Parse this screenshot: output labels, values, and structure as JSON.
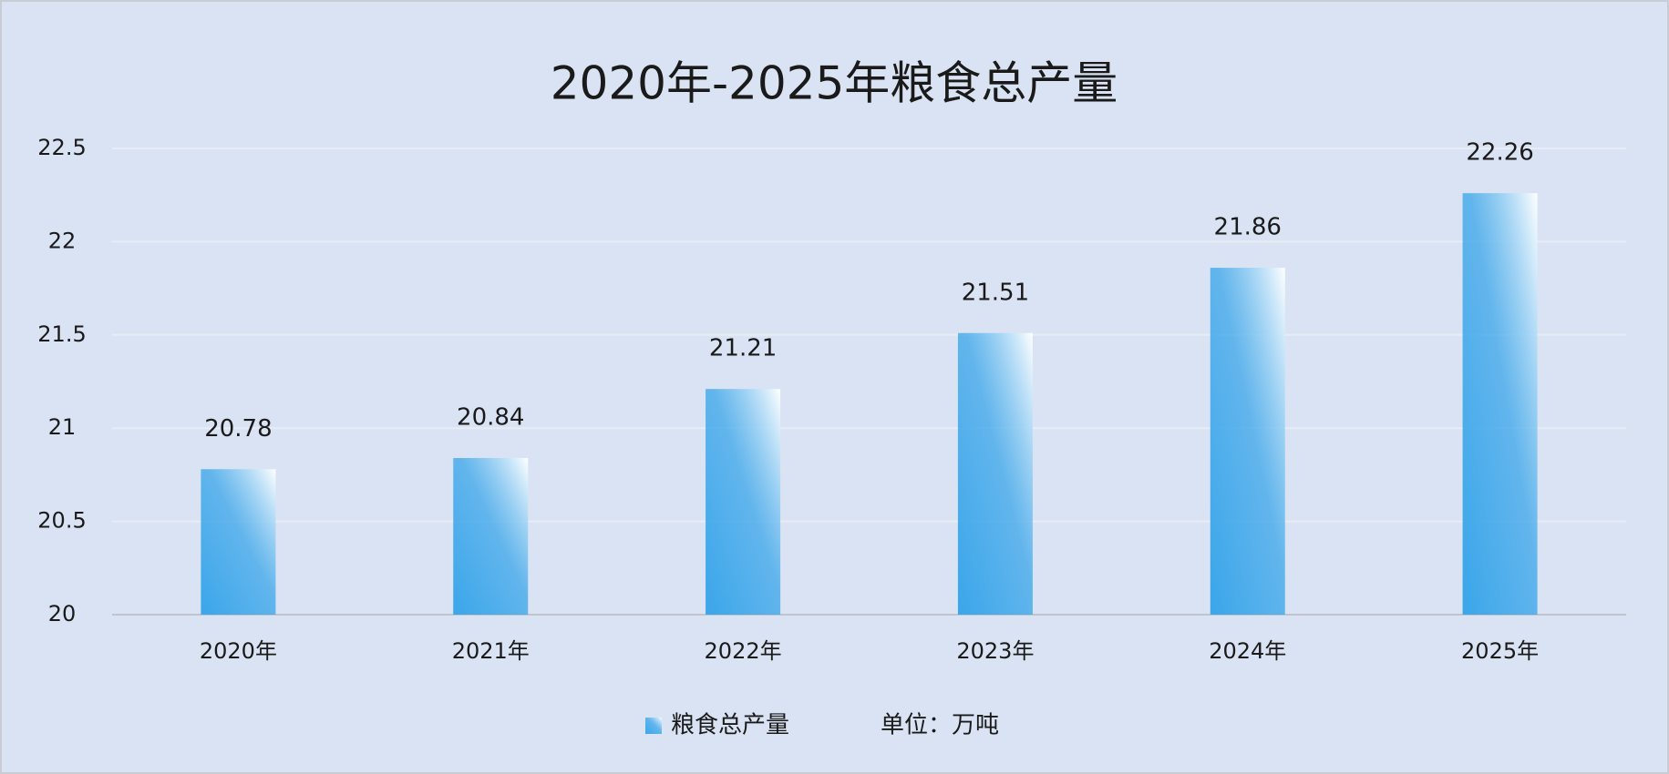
{
  "chart_data": {
    "type": "bar",
    "title": "2020年-2025年粮食总产量",
    "categories": [
      "2020年",
      "2021年",
      "2022年",
      "2023年",
      "2024年",
      "2025年"
    ],
    "series": [
      {
        "name": "粮食总产量",
        "color": "#3aa6ea",
        "values": [
          20.78,
          20.84,
          21.21,
          21.51,
          21.86,
          22.26
        ]
      }
    ],
    "annotation": "单位：万吨",
    "ylim": [
      20,
      22.5
    ],
    "yticks": [
      20,
      20.5,
      21,
      21.5,
      22,
      22.5
    ],
    "grid": true,
    "legend": "bottom"
  }
}
